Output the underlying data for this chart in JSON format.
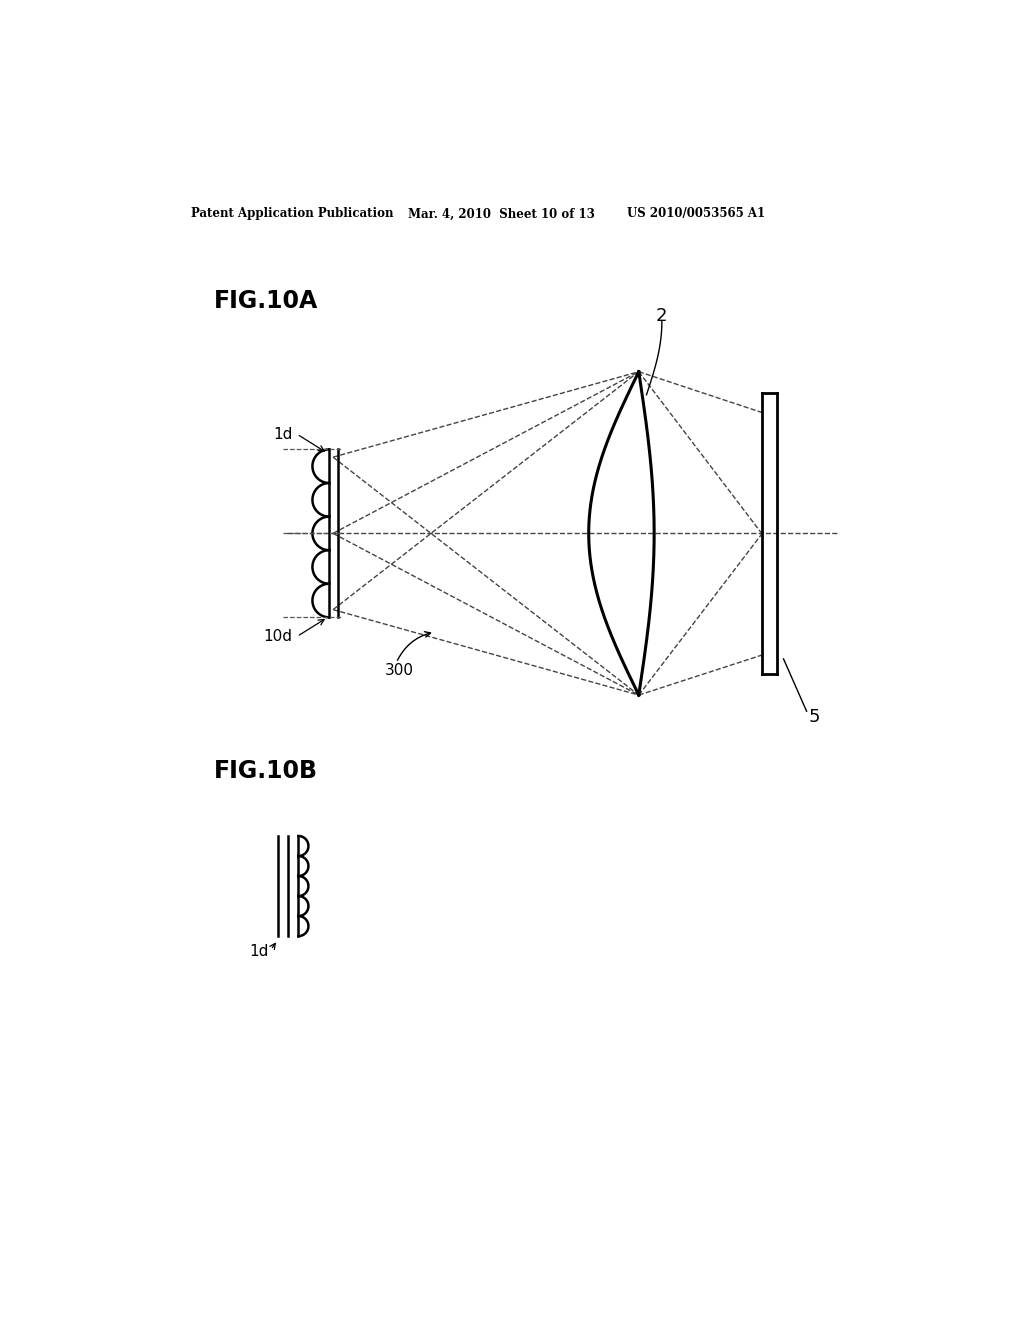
{
  "bg_color": "#ffffff",
  "line_color": "#000000",
  "dashed_color": "#555555",
  "header_left": "Patent Application Publication",
  "header_mid": "Mar. 4, 2010  Sheet 10 of 13",
  "header_right": "US 2010/0053565 A1",
  "fig_label_A": "FIG.10A",
  "fig_label_B": "FIG.10B",
  "label_2": "2",
  "label_1d": "1d",
  "label_10d": "10d",
  "label_300": "300",
  "label_5": "5",
  "label_1d_B": "1d"
}
